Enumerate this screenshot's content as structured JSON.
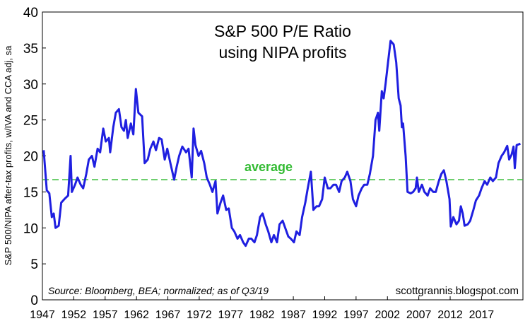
{
  "chart_data": {
    "type": "line",
    "title": "S&P 500 P/E Ratio",
    "subtitle": "using NIPA profits",
    "ylabel": "S&P 500/NIPA after-tax profits, w/IVA and CCA adj, sa",
    "source": "Source: Bloomberg, BEA; normalized; as of Q3/19",
    "credit": "scottgrannis.blogspot.com",
    "average_label": "average",
    "average": 16.7,
    "average_color": "#33bb33",
    "xlim": [
      1947,
      2023.6
    ],
    "xticks": [
      1947,
      1952,
      1957,
      1962,
      1967,
      1972,
      1977,
      1982,
      1987,
      1992,
      1997,
      2002,
      2007,
      2012,
      2017
    ],
    "ylim": [
      0,
      40
    ],
    "yticks": [
      0,
      5,
      10,
      15,
      20,
      25,
      30,
      35,
      40
    ],
    "series": [
      {
        "name": "P/E",
        "color": "#1f1fe0",
        "x": [
          1947.2,
          1947.7,
          1948.1,
          1948.5,
          1948.8,
          1949.1,
          1949.6,
          1950.0,
          1950.5,
          1951.1,
          1951.5,
          1951.7,
          1952.2,
          1952.6,
          1953.1,
          1953.5,
          1954.0,
          1954.4,
          1954.9,
          1955.3,
          1955.8,
          1956.2,
          1956.7,
          1957.1,
          1957.6,
          1957.8,
          1958.3,
          1958.7,
          1959.2,
          1959.6,
          1960.0,
          1960.3,
          1960.6,
          1961.1,
          1961.5,
          1961.9,
          1962.3,
          1962.9,
          1963.3,
          1963.8,
          1964.2,
          1964.7,
          1965.1,
          1965.6,
          1966.0,
          1966.5,
          1966.9,
          1967.4,
          1968.0,
          1968.4,
          1968.8,
          1969.3,
          1969.9,
          1970.3,
          1970.8,
          1971.1,
          1971.4,
          1971.9,
          1972.3,
          1972.8,
          1973.2,
          1973.7,
          1974.1,
          1974.6,
          1974.9,
          1975.4,
          1975.8,
          1976.3,
          1976.7,
          1977.2,
          1977.6,
          1978.1,
          1978.5,
          1979.0,
          1979.4,
          1979.9,
          1980.3,
          1980.8,
          1981.2,
          1981.7,
          1982.1,
          1982.6,
          1983.0,
          1983.5,
          1983.9,
          1984.4,
          1984.8,
          1985.3,
          1985.7,
          1986.2,
          1986.6,
          1987.1,
          1987.5,
          1988.0,
          1988.4,
          1988.9,
          1989.3,
          1989.8,
          1990.2,
          1990.7,
          1991.1,
          1991.6,
          1992.0,
          1992.5,
          1992.9,
          1993.4,
          1993.8,
          1994.3,
          1994.7,
          1995.2,
          1995.6,
          1996.1,
          1996.5,
          1997.0,
          1997.4,
          1997.9,
          1998.3,
          1998.8,
          1999.2,
          1999.7,
          2000.1,
          2000.5,
          2000.7,
          2001.1,
          2001.4,
          2001.7,
          2002.1,
          2002.5,
          2003.0,
          2003.4,
          2003.8,
          2004.1,
          2004.3,
          2004.5,
          2004.9,
          2005.2,
          2005.7,
          2006.1,
          2006.5,
          2006.7,
          2007.0,
          2007.5,
          2007.9,
          2008.4,
          2008.8,
          2009.3,
          2009.7,
          2010.2,
          2010.6,
          2011.0,
          2011.4,
          2011.9,
          2012.1,
          2012.5,
          2013.0,
          2013.4,
          2013.7,
          2014.0,
          2014.3,
          2014.8,
          2015.2,
          2015.7,
          2016.1,
          2016.6,
          2017.0,
          2017.5,
          2017.9,
          2018.4,
          2018.8,
          2019.3,
          2019.7,
          2020.2,
          2020.6,
          2021.1,
          2021.4,
          2021.8,
          2022.1,
          2022.3,
          2022.6,
          2022.9,
          2023.2
        ],
        "values": [
          20.8,
          15.2,
          14.8,
          11.5,
          12,
          10,
          10.3,
          13.5,
          14,
          14.5,
          20,
          15,
          16,
          17,
          16,
          15.5,
          17.5,
          19.5,
          20,
          18.5,
          21,
          20.5,
          23.8,
          22,
          22.5,
          20.5,
          24,
          26,
          26.5,
          24,
          23.5,
          25,
          22.5,
          24.5,
          23,
          29.3,
          26,
          25.5,
          19,
          19.5,
          21,
          22,
          20.8,
          22.5,
          22.3,
          19.5,
          21,
          19,
          16.7,
          18.5,
          20,
          21.3,
          20.5,
          21,
          17,
          23.8,
          21.5,
          20,
          20.7,
          19,
          17,
          16,
          15,
          16.5,
          12,
          13.5,
          14.5,
          12.5,
          12.7,
          10,
          9.5,
          8.5,
          9,
          8,
          7.5,
          8.5,
          8.5,
          8,
          9,
          11.5,
          12,
          10.5,
          9.5,
          8,
          9,
          8,
          10.5,
          11,
          10,
          8.8,
          8.5,
          8,
          9.5,
          9,
          11.5,
          13.5,
          15.5,
          17.8,
          12.5,
          13,
          13,
          14,
          17,
          15.5,
          15.5,
          16,
          16,
          15,
          16.5,
          17,
          17.8,
          16.5,
          14,
          13,
          14.5,
          15.5,
          16,
          16,
          17.5,
          20,
          25,
          26,
          23.5,
          29,
          28,
          30,
          33,
          36,
          35.5,
          33,
          28,
          27,
          24,
          24.5,
          20,
          15,
          14.8,
          15,
          15.5,
          17,
          15,
          16,
          15,
          14.5,
          15.5,
          15,
          15,
          16.5,
          17.5,
          18,
          16.5,
          14,
          10.2,
          11.5,
          10.5,
          11,
          13,
          12,
          10.3,
          10.5,
          11,
          12.5,
          13.8,
          14.5,
          15.5,
          16.5,
          16,
          17,
          16.5,
          17,
          19,
          20,
          20.5,
          21.4,
          19.5,
          20.2,
          21.3,
          18.3,
          21.5,
          21.6,
          21.7
        ]
      }
    ]
  }
}
